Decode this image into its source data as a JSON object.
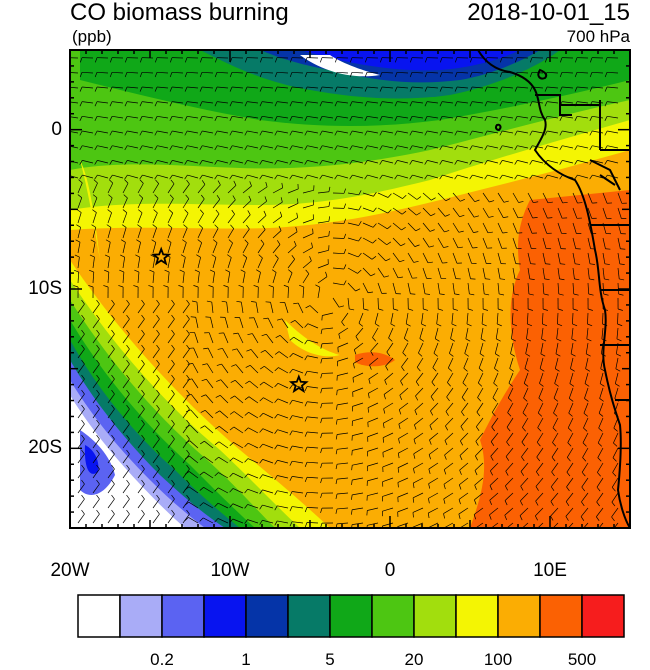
{
  "header": {
    "title_left": "CO biomass burning",
    "title_right": "2018-10-01_15",
    "units": "(ppb)",
    "level": "700 hPa"
  },
  "axes": {
    "y_ticks": [
      {
        "label": "0",
        "lat": 0
      },
      {
        "label": "10S",
        "lat": -10
      },
      {
        "label": "20S",
        "lat": -20
      }
    ],
    "x_ticks": [
      {
        "label": "20W",
        "lon": -20
      },
      {
        "label": "10W",
        "lon": -10
      },
      {
        "label": "0",
        "lon": 0
      },
      {
        "label": "10E",
        "lon": 10
      }
    ],
    "lon_range": [
      -20,
      15
    ],
    "lat_range": [
      -25,
      5
    ]
  },
  "markers": [
    {
      "name": "star-marker",
      "lon": -14.3,
      "lat": -8.0
    },
    {
      "name": "star-marker",
      "lon": -5.7,
      "lat": -16.0
    }
  ],
  "colorbar": {
    "colors": [
      "#ffffff",
      "#a9acf7",
      "#5b63f2",
      "#0814f0",
      "#0534a8",
      "#067a67",
      "#10a818",
      "#4dc612",
      "#a2de0d",
      "#f4f503",
      "#fbad03",
      "#fb6103",
      "#f61d1d"
    ],
    "labels": [
      {
        "text": "0.2",
        "index": 2
      },
      {
        "text": "1",
        "index": 4
      },
      {
        "text": "5",
        "index": 6
      },
      {
        "text": "20",
        "index": 8
      },
      {
        "text": "100",
        "index": 10
      },
      {
        "text": "500",
        "index": 12
      }
    ]
  }
}
